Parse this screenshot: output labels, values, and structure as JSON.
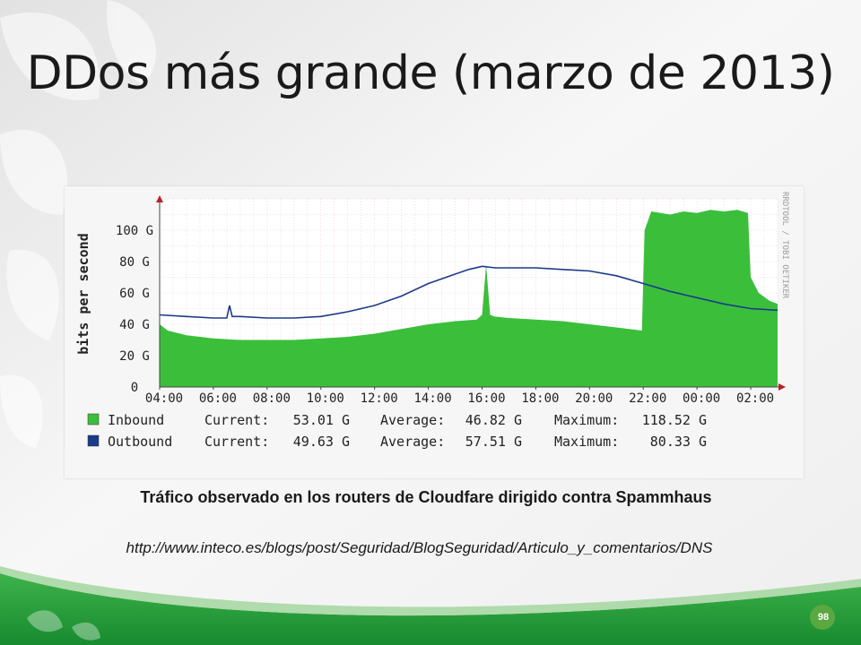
{
  "slide": {
    "title": "DDos más grande (marzo de 2013)",
    "caption": "Tráfico observado en los routers de Cloudfare dirigido contra Spammhaus",
    "source_url": "http://www.inteco.es/blogs/post/Seguridad/BlogSeguridad/Articulo_y_comentarios/DNS",
    "page_number": "98"
  },
  "chart_data": {
    "type": "area",
    "ylabel": "bits per second",
    "watermark": "RRDTOOL / TOBI OETIKER",
    "ylim": [
      0,
      120
    ],
    "grid": true,
    "y_ticks": [
      "0",
      "20 G",
      "40 G",
      "60 G",
      "80 G",
      "100 G"
    ],
    "y_tick_values": [
      0,
      20,
      40,
      60,
      80,
      100
    ],
    "x_ticks": [
      "04:00",
      "06:00",
      "08:00",
      "10:00",
      "12:00",
      "14:00",
      "16:00",
      "18:00",
      "20:00",
      "22:00",
      "00:00",
      "02:00"
    ],
    "x_tick_hours": [
      4,
      6,
      8,
      10,
      12,
      14,
      16,
      18,
      20,
      22,
      24,
      26
    ],
    "xlim_hours": [
      4,
      27
    ],
    "series": [
      {
        "name": "Inbound",
        "color": "#3bbf3b",
        "style": "area",
        "x": [
          4,
          4.3,
          5,
          6,
          7,
          8,
          9,
          10,
          11,
          12,
          13,
          14,
          15,
          15.8,
          16,
          16.15,
          16.3,
          16.45,
          17,
          18,
          19,
          20,
          21,
          21.95,
          22.05,
          22.3,
          23,
          23.5,
          24,
          24.5,
          25,
          25.5,
          25.9,
          26,
          26.3,
          26.7,
          27
        ],
        "values": [
          40,
          36,
          33,
          31,
          30,
          30,
          30,
          31,
          32,
          34,
          37,
          40,
          42,
          43,
          46,
          78,
          46,
          45,
          44,
          43,
          42,
          40,
          38,
          36,
          100,
          112,
          110,
          112,
          111,
          113,
          112,
          113,
          111,
          70,
          60,
          55,
          53
        ]
      },
      {
        "name": "Outbound",
        "color": "#1a3a8a",
        "style": "line",
        "x": [
          4,
          5,
          6,
          6.5,
          6.6,
          6.7,
          7,
          8,
          9,
          10,
          11,
          12,
          13,
          14,
          15,
          15.5,
          16,
          16.5,
          17,
          18,
          19,
          20,
          21,
          22,
          23,
          24,
          25,
          26,
          27
        ],
        "values": [
          46,
          45,
          44,
          44,
          52,
          45,
          45,
          44,
          44,
          45,
          48,
          52,
          58,
          66,
          72,
          75,
          77,
          76,
          76,
          76,
          75,
          74,
          71,
          66,
          61,
          57,
          53,
          50,
          49
        ]
      }
    ],
    "legend": [
      {
        "name": "Inbound",
        "color": "#3bbf3b",
        "current_label": "Current:",
        "current": "53.01 G",
        "average_label": "Average:",
        "average": "46.82 G",
        "maximum_label": "Maximum:",
        "maximum": "118.52 G"
      },
      {
        "name": "Outbound",
        "color": "#1a3a8a",
        "current_label": "Current:",
        "current": "49.63 G",
        "average_label": "Average:",
        "average": "57.51 G",
        "maximum_label": "Maximum:",
        "maximum": "80.33 G"
      }
    ]
  }
}
